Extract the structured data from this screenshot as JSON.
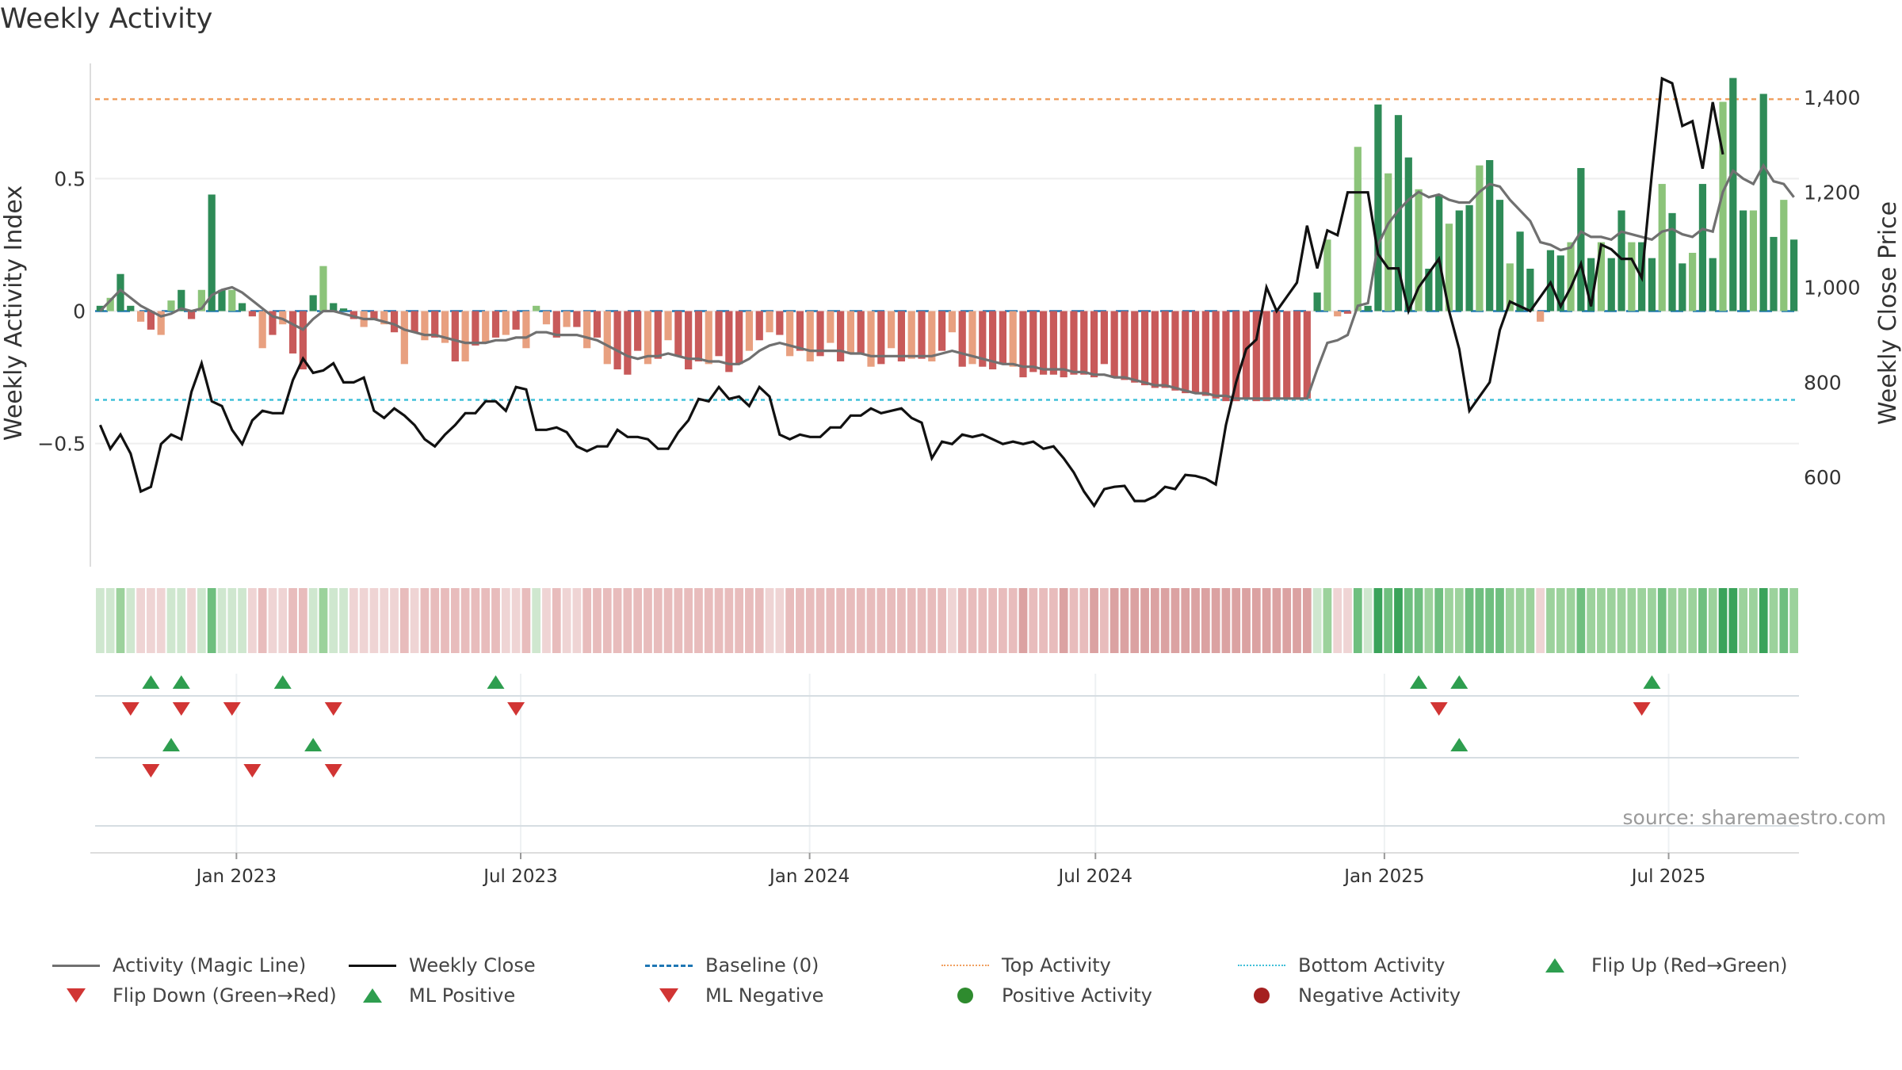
{
  "title": "Weekly Activity",
  "source": "source: sharemaestro.com",
  "colors": {
    "pos_dark": "#2e8b57",
    "pos_light": "#8cc47a",
    "neg_dark": "#c85a5a",
    "neg_light": "#e8a080",
    "magic_line": "#707070",
    "close_line": "#111111",
    "baseline": "#1f77b4",
    "top": "#f0a060",
    "bottom": "#40c0d8",
    "tri_up": "#2e9e4f",
    "tri_down": "#d13534"
  },
  "legend": [
    {
      "label": "Activity (Magic Line)",
      "symbol": "line-gray"
    },
    {
      "label": "Weekly Close",
      "symbol": "line-black"
    },
    {
      "label": "Baseline (0)",
      "symbol": "line-dashed-blue"
    },
    {
      "label": "Top Activity",
      "symbol": "line-dotted-orange"
    },
    {
      "label": "Bottom Activity",
      "symbol": "line-dotted-cyan"
    },
    {
      "label": "Flip Up (Red→Green)",
      "symbol": "triangle-up-green"
    },
    {
      "label": "Flip Down (Green→Red)",
      "symbol": "triangle-down-red"
    },
    {
      "label": "ML Positive",
      "symbol": "triangle-up-green"
    },
    {
      "label": "ML Negative",
      "symbol": "triangle-down-red"
    },
    {
      "label": "Positive Activity",
      "symbol": "dot-green"
    },
    {
      "label": "Negative Activity",
      "symbol": "dot-red"
    }
  ],
  "chart_data": {
    "type": "bar",
    "title": "Weekly Activity",
    "ylabel": "Weekly Activity Index",
    "y2label": "Weekly Close Price",
    "ylim": [
      -0.95,
      0.95
    ],
    "y2lim": [
      420,
      1480
    ],
    "yticks": [
      0.5,
      0,
      -0.5
    ],
    "ytick_labels": [
      "0.5",
      "0",
      "−0.5"
    ],
    "y2ticks": [
      1400,
      1200,
      1000,
      800,
      600
    ],
    "y2tick_labels": [
      "1,400",
      "1,200",
      "1,000",
      "800",
      "600"
    ],
    "x_start": "2022-10-03",
    "x_end": "2025-09-22",
    "xticks": [
      "2023-01-01",
      "2023-07-01",
      "2024-01-01",
      "2024-07-01",
      "2025-01-01",
      "2025-07-01"
    ],
    "xtick_labels": [
      "Jan 2023",
      "Jul 2023",
      "Jan 2024",
      "Jul 2024",
      "Jan 2025",
      "Jul 2025"
    ],
    "top_activity": 0.8,
    "bottom_activity": -0.335,
    "grid": true,
    "legend_position": "bottom",
    "series": [
      {
        "name": "Activity (Magic Line)",
        "type": "line",
        "axis": "left"
      },
      {
        "name": "Weekly Close",
        "type": "line",
        "axis": "right"
      },
      {
        "name": "Baseline (0)",
        "type": "hline",
        "axis": "left",
        "value": 0
      },
      {
        "name": "Top Activity",
        "type": "hline",
        "axis": "left",
        "value": 0.8
      },
      {
        "name": "Bottom Activity",
        "type": "hline",
        "axis": "left",
        "value": -0.335
      }
    ],
    "activity": [
      0.02,
      0.05,
      0.14,
      0.02,
      -0.04,
      -0.07,
      -0.09,
      0.04,
      0.08,
      -0.03,
      0.08,
      0.44,
      0.08,
      0.08,
      0.03,
      -0.02,
      -0.14,
      -0.09,
      -0.05,
      -0.16,
      -0.22,
      0.06,
      0.17,
      0.03,
      0.01,
      -0.03,
      -0.06,
      -0.03,
      -0.05,
      -0.08,
      -0.2,
      -0.08,
      -0.11,
      -0.1,
      -0.12,
      -0.19,
      -0.19,
      -0.13,
      -0.12,
      -0.1,
      -0.09,
      -0.07,
      -0.14,
      0.02,
      -0.05,
      -0.1,
      -0.06,
      -0.06,
      -0.14,
      -0.1,
      -0.2,
      -0.22,
      -0.24,
      -0.15,
      -0.2,
      -0.18,
      -0.11,
      -0.17,
      -0.22,
      -0.19,
      -0.2,
      -0.17,
      -0.23,
      -0.2,
      -0.15,
      -0.11,
      -0.08,
      -0.09,
      -0.17,
      -0.15,
      -0.19,
      -0.17,
      -0.12,
      -0.19,
      -0.16,
      -0.16,
      -0.21,
      -0.2,
      -0.14,
      -0.19,
      -0.18,
      -0.18,
      -0.19,
      -0.15,
      -0.08,
      -0.21,
      -0.2,
      -0.21,
      -0.22,
      -0.2,
      -0.21,
      -0.25,
      -0.23,
      -0.24,
      -0.24,
      -0.25,
      -0.24,
      -0.24,
      -0.25,
      -0.2,
      -0.25,
      -0.26,
      -0.27,
      -0.28,
      -0.29,
      -0.29,
      -0.3,
      -0.31,
      -0.31,
      -0.32,
      -0.33,
      -0.34,
      -0.34,
      -0.33,
      -0.34,
      -0.34,
      -0.33,
      -0.33,
      -0.33,
      -0.33,
      0.07,
      0.27,
      -0.02,
      -0.01,
      0.62,
      0.02,
      0.78,
      0.52,
      0.74,
      0.58,
      0.46,
      0.16,
      0.44,
      0.33,
      0.38,
      0.4,
      0.55,
      0.57,
      0.42,
      0.18,
      0.3,
      0.16,
      -0.04,
      0.23,
      0.21,
      0.26,
      0.54,
      0.2,
      0.26,
      0.2,
      0.38,
      0.26,
      0.26,
      0.2,
      0.48,
      0.37,
      0.18,
      0.22,
      0.48,
      0.2,
      0.79,
      0.88,
      0.38,
      0.38,
      0.82,
      0.28,
      0.42,
      0.27
    ],
    "magic_line": [
      0.0,
      0.04,
      0.08,
      0.05,
      0.02,
      0.0,
      -0.02,
      -0.01,
      0.01,
      0.0,
      0.01,
      0.06,
      0.08,
      0.09,
      0.07,
      0.04,
      0.01,
      -0.02,
      -0.03,
      -0.05,
      -0.07,
      -0.03,
      0.0,
      0.0,
      -0.01,
      -0.02,
      -0.03,
      -0.03,
      -0.04,
      -0.05,
      -0.07,
      -0.08,
      -0.09,
      -0.09,
      -0.1,
      -0.11,
      -0.12,
      -0.12,
      -0.12,
      -0.11,
      -0.11,
      -0.1,
      -0.1,
      -0.08,
      -0.08,
      -0.09,
      -0.09,
      -0.09,
      -0.1,
      -0.11,
      -0.13,
      -0.15,
      -0.17,
      -0.18,
      -0.17,
      -0.17,
      -0.16,
      -0.17,
      -0.18,
      -0.18,
      -0.19,
      -0.19,
      -0.2,
      -0.2,
      -0.18,
      -0.15,
      -0.13,
      -0.12,
      -0.13,
      -0.14,
      -0.15,
      -0.15,
      -0.15,
      -0.15,
      -0.16,
      -0.16,
      -0.17,
      -0.17,
      -0.17,
      -0.17,
      -0.17,
      -0.17,
      -0.17,
      -0.16,
      -0.15,
      -0.16,
      -0.17,
      -0.18,
      -0.19,
      -0.2,
      -0.2,
      -0.21,
      -0.21,
      -0.22,
      -0.22,
      -0.22,
      -0.23,
      -0.23,
      -0.24,
      -0.24,
      -0.25,
      -0.25,
      -0.26,
      -0.27,
      -0.28,
      -0.28,
      -0.29,
      -0.3,
      -0.31,
      -0.31,
      -0.32,
      -0.32,
      -0.33,
      -0.33,
      -0.33,
      -0.33,
      -0.33,
      -0.33,
      -0.33,
      -0.33,
      -0.22,
      -0.12,
      -0.11,
      -0.09,
      0.02,
      0.03,
      0.25,
      0.33,
      0.38,
      0.42,
      0.45,
      0.43,
      0.44,
      0.42,
      0.41,
      0.41,
      0.45,
      0.48,
      0.47,
      0.42,
      0.38,
      0.34,
      0.26,
      0.25,
      0.23,
      0.24,
      0.3,
      0.28,
      0.28,
      0.27,
      0.3,
      0.29,
      0.28,
      0.27,
      0.3,
      0.31,
      0.29,
      0.28,
      0.31,
      0.3,
      0.45,
      0.53,
      0.5,
      0.48,
      0.55,
      0.49,
      0.48,
      0.43
    ],
    "weekly_close": [
      710,
      660,
      690,
      650,
      570,
      580,
      670,
      690,
      680,
      780,
      840,
      760,
      750,
      700,
      670,
      720,
      740,
      735,
      735,
      805,
      850,
      820,
      825,
      840,
      800,
      800,
      810,
      740,
      725,
      745,
      730,
      710,
      680,
      665,
      690,
      710,
      735,
      735,
      760,
      760,
      740,
      790,
      785,
      700,
      700,
      705,
      695,
      665,
      655,
      665,
      665,
      700,
      685,
      685,
      680,
      660,
      660,
      695,
      720,
      765,
      760,
      790,
      765,
      770,
      750,
      790,
      770,
      690,
      680,
      690,
      685,
      685,
      705,
      705,
      730,
      730,
      745,
      735,
      740,
      745,
      725,
      715,
      640,
      675,
      670,
      690,
      685,
      690,
      680,
      670,
      675,
      670,
      675,
      660,
      665,
      640,
      610,
      570,
      540,
      575,
      580,
      582,
      550,
      550,
      560,
      580,
      575,
      605,
      603,
      597,
      585,
      710,
      800,
      870,
      890,
      1000,
      950,
      980,
      1010,
      1130,
      1040,
      1120,
      1110,
      1200,
      1200,
      1200,
      1070,
      1040,
      1040,
      950,
      1000,
      1030,
      1060,
      950,
      870,
      740,
      770,
      800,
      910,
      970,
      960,
      950,
      980,
      1010,
      960,
      1000,
      1050,
      960,
      1090,
      1080,
      1060,
      1060,
      1020,
      1240,
      1440,
      1430,
      1340,
      1350,
      1250,
      1390,
      1280
    ]
  },
  "heatmap": {
    "row_count": 1,
    "note_colors": [
      "#cfe7cf",
      "#9cd29c",
      "#3aa35a",
      "#efd4d4",
      "#e6b2b2",
      "#d99a9a"
    ]
  },
  "markers": {
    "flip_up_weeks": [
      5,
      8,
      18,
      39,
      130,
      134,
      153
    ],
    "flip_down_weeks": [
      3,
      8,
      13,
      23,
      41,
      132,
      152
    ],
    "ml_positive_weeks": [
      7,
      21,
      134
    ],
    "ml_negative_weeks": [
      5,
      15,
      23
    ]
  }
}
